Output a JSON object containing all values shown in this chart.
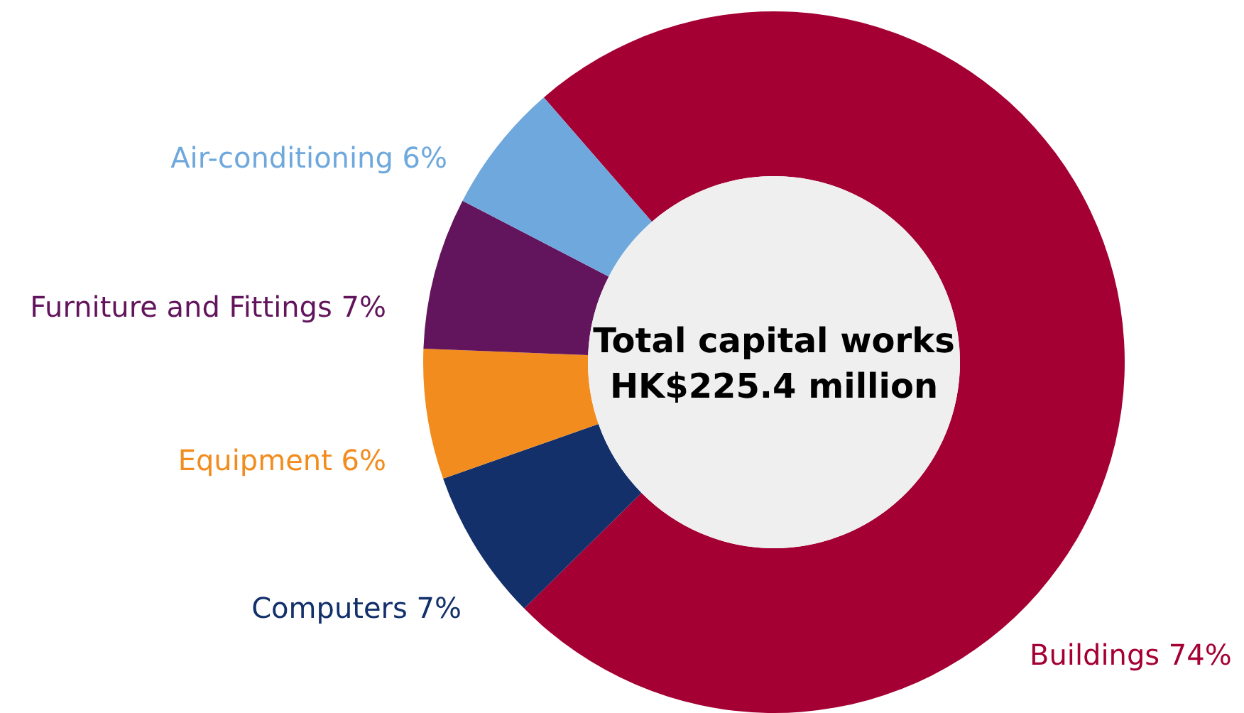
{
  "chart_data": {
    "type": "donut",
    "categories": [
      "Buildings",
      "Computers",
      "Equipment",
      "Furniture and Fittings",
      "Air-conditioning"
    ],
    "values": [
      74,
      7,
      6,
      7,
      6
    ],
    "value_labels": [
      "74%",
      "7%",
      "6%",
      "7%",
      "6%"
    ],
    "colors": [
      "#a50034",
      "#13306b",
      "#f28c1e",
      "#62145c",
      "#6fa8dc"
    ],
    "annotations": [
      "Total capital works",
      "HK$225.4 million"
    ]
  }
}
